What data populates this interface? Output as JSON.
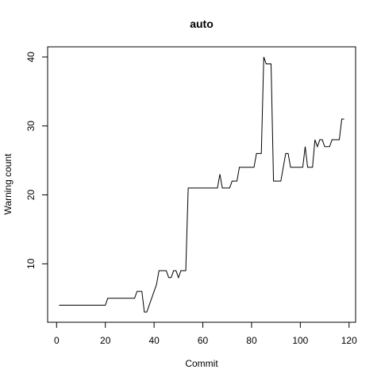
{
  "chart_data": {
    "type": "line",
    "title": "auto",
    "xlabel": "Commit",
    "ylabel": "Warning count",
    "x": [
      1,
      2,
      3,
      4,
      5,
      6,
      7,
      8,
      9,
      10,
      11,
      12,
      13,
      14,
      15,
      16,
      17,
      18,
      19,
      20,
      21,
      22,
      23,
      24,
      25,
      26,
      27,
      28,
      29,
      30,
      31,
      32,
      33,
      34,
      35,
      36,
      37,
      38,
      39,
      40,
      41,
      42,
      43,
      44,
      45,
      46,
      47,
      48,
      49,
      50,
      51,
      52,
      53,
      54,
      55,
      56,
      57,
      58,
      59,
      60,
      61,
      62,
      63,
      64,
      65,
      66,
      67,
      68,
      69,
      70,
      71,
      72,
      73,
      74,
      75,
      76,
      77,
      78,
      79,
      80,
      81,
      82,
      83,
      84,
      85,
      86,
      87,
      88,
      89,
      90,
      91,
      92,
      93,
      94,
      95,
      96,
      97,
      98,
      99,
      100,
      101,
      102,
      103,
      104,
      105,
      106,
      107,
      108,
      109,
      110,
      111,
      112,
      113,
      114,
      115,
      116,
      117,
      118
    ],
    "series": [
      {
        "color": "#000000",
        "values": [
          4,
          4,
          4,
          4,
          4,
          4,
          4,
          4,
          4,
          4,
          4,
          4,
          4,
          4,
          4,
          4,
          4,
          4,
          4,
          4,
          5,
          5,
          5,
          5,
          5,
          5,
          5,
          5,
          5,
          5,
          5,
          5,
          6,
          6,
          6,
          3,
          3,
          4,
          5,
          6,
          7,
          9,
          9,
          9,
          9,
          8,
          8,
          9,
          9,
          8,
          9,
          9,
          9,
          21,
          21,
          21,
          21,
          21,
          21,
          21,
          21,
          21,
          21,
          21,
          21,
          21,
          23,
          21,
          21,
          21,
          21,
          22,
          22,
          22,
          24,
          24,
          24,
          24,
          24,
          24,
          24,
          26,
          26,
          26,
          40,
          39,
          39,
          39,
          22,
          22,
          22,
          22,
          24,
          26,
          26,
          24,
          24,
          24,
          24,
          24,
          24,
          27,
          24,
          24,
          24,
          28,
          27,
          28,
          28,
          27,
          27,
          27,
          28,
          28,
          28,
          28,
          31,
          31
        ]
      }
    ],
    "xlim": [
      -3.68,
      122.68
    ],
    "ylim": [
      1.52,
      41.48
    ],
    "xticks": [
      0,
      20,
      40,
      60,
      80,
      100,
      120
    ],
    "yticks": [
      10,
      20,
      30,
      40
    ]
  }
}
